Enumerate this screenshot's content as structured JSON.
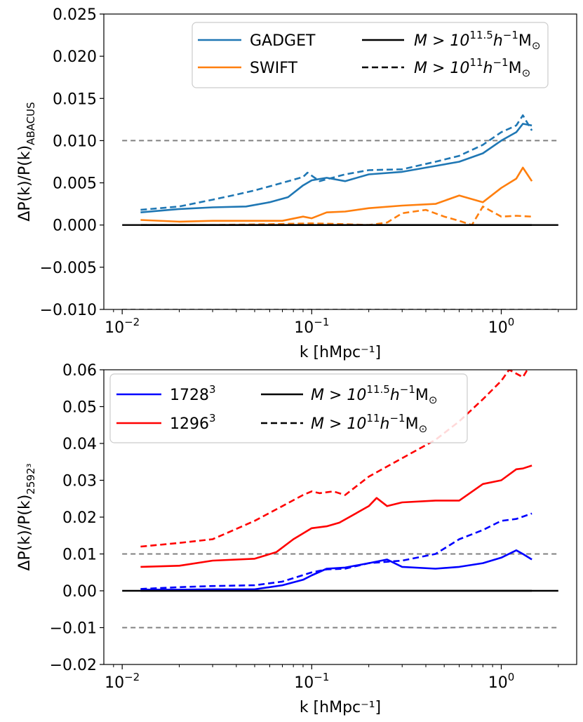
{
  "chart_data": [
    {
      "type": "line",
      "xscale": "log",
      "xlim": [
        0.008,
        2.5
      ],
      "ylim": [
        -0.01,
        0.025
      ],
      "xlabel": "k [hMpc⁻¹]",
      "ylabel": "ΔP(k)/P(k)ABACUS",
      "ylabel_main": "ΔP(k)/P(k)",
      "ylabel_sub": "ABACUS",
      "yticks": [
        -0.01,
        -0.005,
        0.0,
        0.005,
        0.01,
        0.015,
        0.02,
        0.025
      ],
      "ytick_labels": [
        "−0.010",
        "−0.005",
        "0.000",
        "0.005",
        "0.010",
        "0.015",
        "0.020",
        "0.025"
      ],
      "xticks": [
        0.01,
        0.1,
        1.0
      ],
      "xtick_base": "10",
      "xtick_exponents": [
        "−2",
        "−1",
        "0"
      ],
      "reference_lines": [
        {
          "y": 0.01,
          "style": "dashed",
          "color": "#808080"
        },
        {
          "y": 0.0,
          "style": "solid",
          "color": "#000000"
        },
        {
          "y": -0.01,
          "style": "dashed",
          "color": "#808080"
        }
      ],
      "legend": {
        "placement": "top-right",
        "entries": [
          {
            "label": "GADGET",
            "color": "#1f77b4",
            "style": "solid"
          },
          {
            "label": "SWIFT",
            "color": "#ff7f0e",
            "style": "solid"
          },
          {
            "label": "M > 10^11.5 h⁻¹M⊙",
            "color": "#000000",
            "style": "solid",
            "mant": "M > 10",
            "exp": "11.5",
            "rest": "h",
            "rest_sup": "−1",
            "tail": "M",
            "tail_sub": "⊙"
          },
          {
            "label": "M > 10^11 h⁻¹M⊙",
            "color": "#000000",
            "style": "dashed",
            "mant": "M > 10",
            "exp": "11",
            "rest": "h",
            "rest_sup": "−1",
            "tail": "M",
            "tail_sub": "⊙"
          }
        ]
      },
      "series": [
        {
          "name": "GADGET M>10^11.5",
          "color": "#1f77b4",
          "style": "solid",
          "x": [
            0.0125,
            0.02,
            0.03,
            0.045,
            0.06,
            0.075,
            0.09,
            0.1,
            0.12,
            0.15,
            0.2,
            0.3,
            0.45,
            0.6,
            0.8,
            1.0,
            1.2,
            1.3,
            1.45
          ],
          "y": [
            0.0015,
            0.0019,
            0.0021,
            0.0022,
            0.0027,
            0.0033,
            0.0047,
            0.0053,
            0.0056,
            0.0052,
            0.006,
            0.0063,
            0.007,
            0.0075,
            0.0085,
            0.01,
            0.011,
            0.012,
            0.0118
          ]
        },
        {
          "name": "GADGET M>10^11",
          "color": "#1f77b4",
          "style": "dashed",
          "x": [
            0.0125,
            0.02,
            0.03,
            0.04,
            0.05,
            0.07,
            0.09,
            0.095,
            0.11,
            0.15,
            0.2,
            0.3,
            0.45,
            0.6,
            0.8,
            1.0,
            1.2,
            1.3,
            1.45
          ],
          "y": [
            0.0018,
            0.0022,
            0.003,
            0.0036,
            0.0041,
            0.005,
            0.0057,
            0.0062,
            0.0052,
            0.006,
            0.0065,
            0.0066,
            0.0075,
            0.0082,
            0.0095,
            0.011,
            0.0118,
            0.013,
            0.0112
          ]
        },
        {
          "name": "SWIFT M>10^11.5",
          "color": "#ff7f0e",
          "style": "solid",
          "x": [
            0.0125,
            0.02,
            0.03,
            0.05,
            0.07,
            0.09,
            0.1,
            0.12,
            0.15,
            0.2,
            0.3,
            0.45,
            0.6,
            0.8,
            1.0,
            1.2,
            1.3,
            1.45
          ],
          "y": [
            0.0006,
            0.0004,
            0.0005,
            0.0005,
            0.0005,
            0.001,
            0.0008,
            0.0015,
            0.0016,
            0.002,
            0.0023,
            0.0025,
            0.0035,
            0.0027,
            0.0044,
            0.0055,
            0.0068,
            0.0052
          ]
        },
        {
          "name": "SWIFT M>10^11",
          "color": "#ff7f0e",
          "style": "dashed",
          "x": [
            0.0125,
            0.03,
            0.06,
            0.1,
            0.15,
            0.2,
            0.25,
            0.3,
            0.4,
            0.5,
            0.6,
            0.7,
            0.8,
            1.0,
            1.2,
            1.45
          ],
          "y": [
            0.0,
            0.0,
            0.0001,
            0.0002,
            0.0001,
            0.0,
            0.0003,
            0.0014,
            0.0018,
            0.001,
            0.0005,
            0.0,
            0.0022,
            0.001,
            0.0011,
            0.001
          ]
        },
        {
          "name": "M>10^11.5 reference",
          "color": "#000000",
          "style": "solid",
          "x": [
            0.0125,
            1.45
          ],
          "y": [
            0.0,
            0.0
          ]
        }
      ]
    },
    {
      "type": "line",
      "xscale": "log",
      "xlim": [
        0.008,
        2.5
      ],
      "ylim": [
        -0.02,
        0.06
      ],
      "xlabel": "k [hMpc⁻¹]",
      "ylabel": "ΔP(k)/P(k)2592³",
      "ylabel_main": "ΔP(k)/P(k)",
      "ylabel_sub": "2592³",
      "yticks": [
        -0.02,
        -0.01,
        0.0,
        0.01,
        0.02,
        0.03,
        0.04,
        0.05,
        0.06
      ],
      "ytick_labels": [
        "−0.02",
        "−0.01",
        "0.00",
        "0.01",
        "0.02",
        "0.03",
        "0.04",
        "0.05",
        "0.06"
      ],
      "xticks": [
        0.01,
        0.1,
        1.0
      ],
      "xtick_base": "10",
      "xtick_exponents": [
        "−2",
        "−1",
        "0"
      ],
      "reference_lines": [
        {
          "y": 0.01,
          "style": "dashed",
          "color": "#808080"
        },
        {
          "y": 0.0,
          "style": "solid",
          "color": "#000000"
        },
        {
          "y": -0.01,
          "style": "dashed",
          "color": "#808080"
        }
      ],
      "legend": {
        "placement": "top-left",
        "entries": [
          {
            "label": "1728³",
            "color": "#0000ff",
            "style": "solid",
            "mant": "1728",
            "exp": "3"
          },
          {
            "label": "1296³",
            "color": "#ff0000",
            "style": "solid",
            "mant": "1296",
            "exp": "3"
          },
          {
            "label": "M > 10^11.5 h⁻¹M⊙",
            "color": "#000000",
            "style": "solid",
            "mant": "M > 10",
            "exp": "11.5",
            "rest": "h",
            "rest_sup": "−1",
            "tail": "M",
            "tail_sub": "⊙"
          },
          {
            "label": "M > 10^11 h⁻¹M⊙",
            "color": "#000000",
            "style": "dashed",
            "mant": "M > 10",
            "exp": "11",
            "rest": "h",
            "rest_sup": "−1",
            "tail": "M",
            "tail_sub": "⊙"
          }
        ]
      },
      "series": [
        {
          "name": "1296³ M>10^11",
          "color": "#ff0000",
          "style": "dashed",
          "x": [
            0.0125,
            0.02,
            0.03,
            0.05,
            0.07,
            0.09,
            0.1,
            0.11,
            0.13,
            0.15,
            0.2,
            0.3,
            0.45,
            0.6,
            0.8,
            1.0,
            1.1,
            1.3,
            1.45
          ],
          "y": [
            0.012,
            0.013,
            0.014,
            0.019,
            0.023,
            0.026,
            0.027,
            0.0265,
            0.027,
            0.026,
            0.031,
            0.036,
            0.041,
            0.046,
            0.052,
            0.057,
            0.06,
            0.058,
            0.062
          ]
        },
        {
          "name": "1296³ M>10^11.5",
          "color": "#ff0000",
          "style": "solid",
          "x": [
            0.0125,
            0.02,
            0.03,
            0.05,
            0.065,
            0.08,
            0.1,
            0.12,
            0.14,
            0.2,
            0.22,
            0.25,
            0.3,
            0.45,
            0.6,
            0.8,
            1.0,
            1.2,
            1.3,
            1.45
          ],
          "y": [
            0.0065,
            0.0068,
            0.0082,
            0.0087,
            0.0105,
            0.014,
            0.017,
            0.0175,
            0.0185,
            0.023,
            0.0252,
            0.023,
            0.024,
            0.0245,
            0.0245,
            0.029,
            0.03,
            0.033,
            0.0332,
            0.034
          ]
        },
        {
          "name": "1728³ M>10^11",
          "color": "#0000ff",
          "style": "dashed",
          "x": [
            0.0125,
            0.02,
            0.03,
            0.05,
            0.07,
            0.1,
            0.12,
            0.15,
            0.2,
            0.3,
            0.45,
            0.6,
            0.8,
            1.0,
            1.2,
            1.45
          ],
          "y": [
            0.0005,
            0.001,
            0.0013,
            0.0015,
            0.0025,
            0.005,
            0.0058,
            0.006,
            0.0075,
            0.0082,
            0.01,
            0.014,
            0.0165,
            0.019,
            0.0195,
            0.021
          ]
        },
        {
          "name": "1728³ M>10^11.5",
          "color": "#0000ff",
          "style": "solid",
          "x": [
            0.0125,
            0.02,
            0.03,
            0.05,
            0.07,
            0.09,
            0.1,
            0.12,
            0.15,
            0.2,
            0.25,
            0.3,
            0.45,
            0.6,
            0.8,
            1.0,
            1.2,
            1.3,
            1.45
          ],
          "y": [
            0.0003,
            0.0003,
            0.0004,
            0.0004,
            0.0015,
            0.003,
            0.0042,
            0.006,
            0.0063,
            0.0075,
            0.0085,
            0.0065,
            0.006,
            0.0065,
            0.0075,
            0.009,
            0.011,
            0.01,
            0.0085
          ]
        },
        {
          "name": "M>10^11.5 reference",
          "color": "#000000",
          "style": "solid",
          "x": [
            0.0125,
            1.45
          ],
          "y": [
            0.0,
            0.0
          ]
        }
      ]
    }
  ]
}
